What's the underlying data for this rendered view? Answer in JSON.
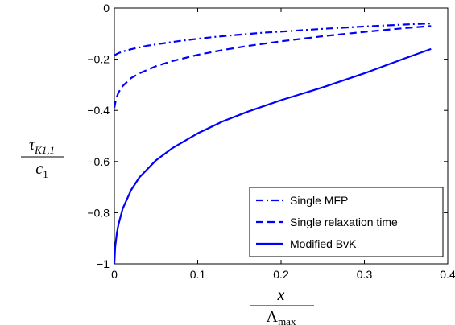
{
  "chart_data": {
    "type": "line",
    "title": "",
    "xlabel": {
      "numerator": "x",
      "denominator_base": "Λ",
      "denominator_sub": "max"
    },
    "ylabel": {
      "numerator_base": "τ",
      "numerator_sub": "K1,1",
      "denominator_base": "c",
      "denominator_sub": "1"
    },
    "xlim": [
      0,
      0.4
    ],
    "ylim": [
      -1,
      0
    ],
    "x_ticks": [
      0,
      0.1,
      0.2,
      0.3,
      0.4
    ],
    "x_tick_labels": [
      "0",
      "0.1",
      "0.2",
      "0.3",
      "0.4"
    ],
    "y_ticks": [
      -1,
      -0.8,
      -0.6,
      -0.4,
      -0.2,
      0
    ],
    "y_tick_labels": [
      "−1",
      "−0.8",
      "−0.6",
      "−0.4",
      "−0.2",
      "0"
    ],
    "grid": false,
    "legend_position": "bottom-right",
    "color": "#0000ff",
    "series": [
      {
        "name": "Single MFP",
        "style": "dashdot",
        "x": [
          0,
          0.005,
          0.01,
          0.02,
          0.04,
          0.06,
          0.08,
          0.1,
          0.12,
          0.15,
          0.18,
          0.2,
          0.25,
          0.3,
          0.35,
          0.38
        ],
        "y": [
          -0.185,
          -0.176,
          -0.17,
          -0.161,
          -0.147,
          -0.137,
          -0.128,
          -0.12,
          -0.113,
          -0.104,
          -0.096,
          -0.092,
          -0.081,
          -0.072,
          -0.064,
          -0.06
        ]
      },
      {
        "name": "Single relaxation time",
        "style": "dashed",
        "x": [
          0,
          0.002,
          0.005,
          0.01,
          0.02,
          0.03,
          0.05,
          0.07,
          0.1,
          0.13,
          0.16,
          0.2,
          0.25,
          0.3,
          0.35,
          0.38
        ],
        "y": [
          -0.39,
          -0.355,
          -0.33,
          -0.305,
          -0.274,
          -0.255,
          -0.227,
          -0.207,
          -0.183,
          -0.164,
          -0.148,
          -0.13,
          -0.11,
          -0.093,
          -0.078,
          -0.07
        ]
      },
      {
        "name": "Modified BvK",
        "style": "solid",
        "x": [
          0,
          0.001,
          0.003,
          0.005,
          0.01,
          0.02,
          0.03,
          0.05,
          0.07,
          0.1,
          0.13,
          0.16,
          0.2,
          0.25,
          0.3,
          0.35,
          0.38
        ],
        "y": [
          -1.0,
          -0.935,
          -0.88,
          -0.845,
          -0.785,
          -0.712,
          -0.662,
          -0.595,
          -0.547,
          -0.49,
          -0.443,
          -0.405,
          -0.36,
          -0.31,
          -0.255,
          -0.195,
          -0.16
        ]
      }
    ]
  }
}
